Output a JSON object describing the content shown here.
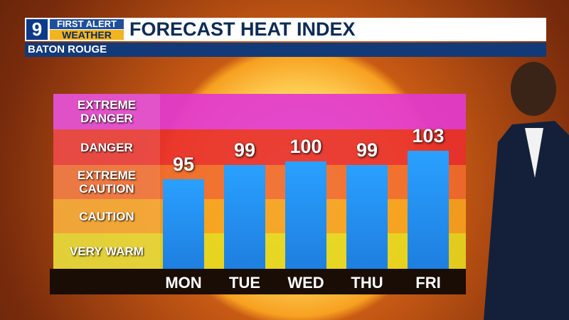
{
  "header": {
    "logo": "9",
    "brand_top": "FIRST ALERT",
    "brand_bottom": "WEATHER"
  },
  "chart_data": {
    "type": "bar",
    "title": "FORECAST HEAT INDEX",
    "subtitle": "BATON ROUGE",
    "bands": [
      {
        "label": "EXTREME DANGER",
        "color": "#e23ad0"
      },
      {
        "label": "DANGER",
        "color": "#e8302c"
      },
      {
        "label": "EXTREME CAUTION",
        "color": "#f06a2c"
      },
      {
        "label": "CAUTION",
        "color": "#f5a11e"
      },
      {
        "label": "VERY WARM",
        "color": "#e5d61e"
      }
    ],
    "categories": [
      "MON",
      "TUE",
      "WED",
      "THU",
      "FRI"
    ],
    "values": [
      95,
      99,
      100,
      99,
      103
    ],
    "color": "#1e7fe0",
    "ylim": [
      70,
      119
    ]
  }
}
